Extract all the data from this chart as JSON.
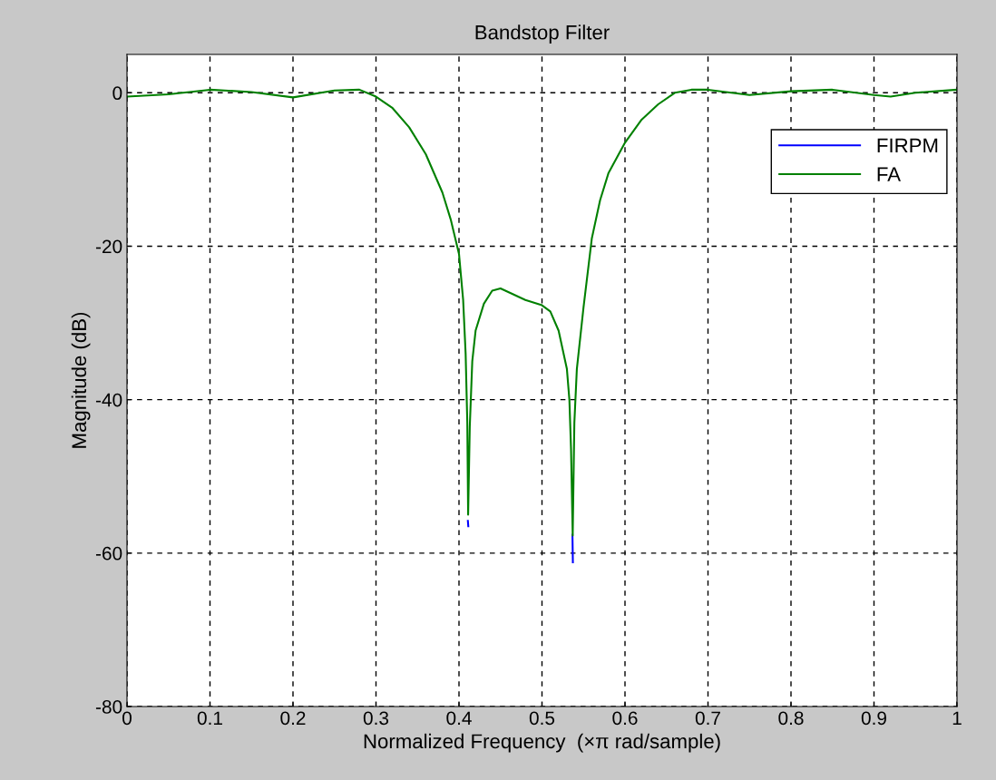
{
  "chart_data": {
    "type": "line",
    "title": "Bandstop Filter",
    "xlabel": "Normalized Frequency  (×π rad/sample)",
    "ylabel": "Magnitude (dB)",
    "xlim": [
      0,
      1
    ],
    "ylim": [
      -80,
      5
    ],
    "xticks": [
      0,
      0.1,
      0.2,
      0.3,
      0.4,
      0.5,
      0.6,
      0.7,
      0.8,
      0.9,
      1
    ],
    "yticks": [
      -80,
      -60,
      -40,
      -20,
      0
    ],
    "grid": true,
    "legend": "top right",
    "line_style": "solid",
    "x": [
      0,
      0.05,
      0.1,
      0.15,
      0.2,
      0.25,
      0.28,
      0.3,
      0.32,
      0.34,
      0.36,
      0.38,
      0.39,
      0.4,
      0.405,
      0.408,
      0.41,
      0.411,
      0.413,
      0.416,
      0.42,
      0.43,
      0.44,
      0.45,
      0.46,
      0.48,
      0.5,
      0.51,
      0.52,
      0.53,
      0.533,
      0.535,
      0.537,
      0.539,
      0.542,
      0.55,
      0.56,
      0.57,
      0.58,
      0.6,
      0.62,
      0.64,
      0.66,
      0.68,
      0.7,
      0.75,
      0.8,
      0.85,
      0.9,
      0.92,
      0.95,
      1
    ],
    "series": [
      {
        "name": "FIRPM",
        "color": "#0000ff",
        "x": [
          0.4107,
          0.4112,
          null,
          0.5367,
          0.5372
        ],
        "values": [
          -55.8,
          -56.5,
          null,
          -57.6,
          -61.2
        ]
      },
      {
        "name": "FA",
        "color": "#008000",
        "values": [
          -0.5,
          -0.2,
          0.4,
          0.1,
          -0.6,
          0.3,
          0.4,
          -0.5,
          -2,
          -4.5,
          -8,
          -13,
          -16.5,
          -21,
          -27,
          -34,
          -43,
          -55,
          -43.5,
          -35,
          -31,
          -27.5,
          -25.8,
          -25.5,
          -26,
          -27,
          -27.7,
          -28.5,
          -31,
          -36,
          -40,
          -46.5,
          -57.7,
          -43,
          -36,
          -28,
          -19,
          -14,
          -10.5,
          -6.5,
          -3.5,
          -1.5,
          0,
          0.4,
          0.4,
          -0.3,
          0.2,
          0.4,
          -0.3,
          -0.5,
          0,
          0.4
        ]
      }
    ]
  }
}
